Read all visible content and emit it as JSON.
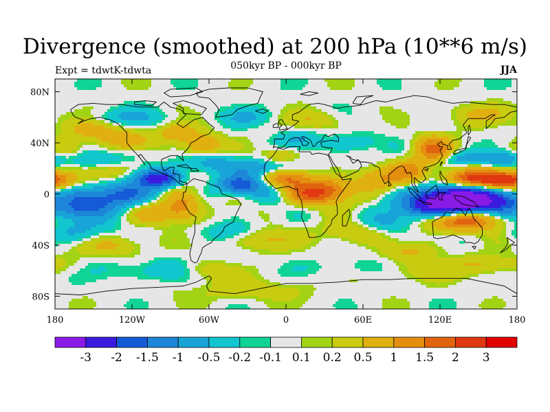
{
  "title": "Divergence (smoothed) at 200 hPa (10**6 m/s)",
  "subtitle": "050kyr BP - 000kyr BP",
  "left_label": "Expt = tdwtK-tdwta",
  "right_label": "JJA",
  "chart_data": {
    "type": "heatmap",
    "projection": "cylindrical-equidistant",
    "variable": "200 hPa divergence difference (smoothed)",
    "x_ticks": [
      "180",
      "120W",
      "60W",
      "0",
      "60E",
      "120E",
      "180"
    ],
    "x_tick_values": [
      -180,
      -120,
      -60,
      0,
      60,
      120,
      180
    ],
    "y_ticks": [
      "80N",
      "40N",
      "0",
      "40S",
      "80S"
    ],
    "y_tick_values": [
      80,
      40,
      0,
      -40,
      -80
    ],
    "xlim": [
      -180,
      180
    ],
    "ylim": [
      -90,
      90
    ],
    "colorbar": {
      "labels": [
        "-3",
        "-2",
        "-1.5",
        "-1",
        "-0.5",
        "-0.2",
        "-0.1",
        "0.1",
        "0.2",
        "0.5",
        "1",
        "1.5",
        "2",
        "3"
      ],
      "colors": [
        "#8a1ae6",
        "#3a1ce0",
        "#155ad6",
        "#1d86d8",
        "#19a4d8",
        "#12c6d0",
        "#10d496",
        "#e6e6e6",
        "#a2d314",
        "#c8cb10",
        "#e0b010",
        "#e48e10",
        "#e06410",
        "#e03810",
        "#e00000"
      ]
    },
    "features": [
      {
        "region": "western Pacific / Maritime Continent",
        "lon": 140,
        "lat": -5,
        "value": -3
      },
      {
        "region": "tropical eastern Pacific",
        "lon": -160,
        "lat": -5,
        "value": -1.5
      },
      {
        "region": "Central America",
        "lon": -95,
        "lat": 12,
        "value": -2
      },
      {
        "region": "tropical Atlantic",
        "lon": -30,
        "lat": 7,
        "value": -1.5
      },
      {
        "region": "equatorial Africa",
        "lon": 15,
        "lat": 0,
        "value": 1.5
      },
      {
        "region": "northern Australia",
        "lon": 135,
        "lat": -20,
        "value": 2
      },
      {
        "region": "north Pacific subtropics",
        "lon": 150,
        "lat": 12,
        "value": 2
      },
      {
        "region": "eastern Asia",
        "lon": 115,
        "lat": 35,
        "value": 1.5
      },
      {
        "region": "eastern North America",
        "lon": -65,
        "lat": 38,
        "value": 1
      },
      {
        "region": "southern Atlantic",
        "lon": -20,
        "lat": -35,
        "value": 0.5
      }
    ]
  }
}
